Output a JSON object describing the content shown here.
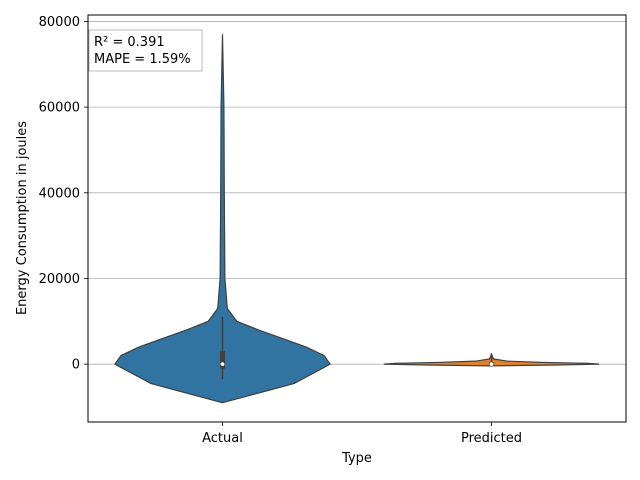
{
  "chart_data": {
    "type": "violin",
    "xlabel": "Type",
    "ylabel": "Energy Consumption in joules",
    "categories": [
      "Actual",
      "Predicted"
    ],
    "ylim": [
      -13500,
      81500
    ],
    "yticks": [
      0,
      20000,
      40000,
      60000,
      80000
    ],
    "ytick_labels": [
      "0",
      "20000",
      "40000",
      "60000",
      "80000"
    ],
    "grid": "horizontal",
    "annotation": {
      "lines": [
        "R² = 0.391",
        "MAPE = 1.59%"
      ],
      "placement": "top-left"
    },
    "series": [
      {
        "category": "Actual",
        "color": "#3274a1",
        "range": [
          -9000,
          77000
        ],
        "median": 0,
        "q1": -1000,
        "q3": 3000,
        "whisker_low": -3500,
        "whisker_high": 11000,
        "density_profile": [
          [
            -9000,
            0.0
          ],
          [
            -7500,
            0.02
          ],
          [
            -6000,
            0.04
          ],
          [
            -4500,
            0.06
          ],
          [
            -3000,
            0.07
          ],
          [
            -1500,
            0.08
          ],
          [
            0,
            0.09
          ],
          [
            2000,
            0.085
          ],
          [
            4000,
            0.07
          ],
          [
            6000,
            0.05
          ],
          [
            8000,
            0.03
          ],
          [
            10000,
            0.012
          ],
          [
            13000,
            0.004
          ],
          [
            20000,
            0.002
          ],
          [
            40000,
            0.0015
          ],
          [
            60000,
            0.0012
          ],
          [
            77000,
            0.0
          ]
        ]
      },
      {
        "category": "Predicted",
        "color": "#e1812c",
        "range": [
          -400,
          2500
        ],
        "median": 0,
        "q1": -100,
        "q3": 400,
        "whisker_low": -300,
        "whisker_high": 2400,
        "density_profile": [
          [
            -400,
            0.0
          ],
          [
            -200,
            0.6
          ],
          [
            0,
            1.0
          ],
          [
            200,
            0.9
          ],
          [
            400,
            0.5
          ],
          [
            700,
            0.15
          ],
          [
            1200,
            0.02
          ],
          [
            2000,
            0.005
          ],
          [
            2500,
            0.0
          ]
        ]
      }
    ]
  }
}
